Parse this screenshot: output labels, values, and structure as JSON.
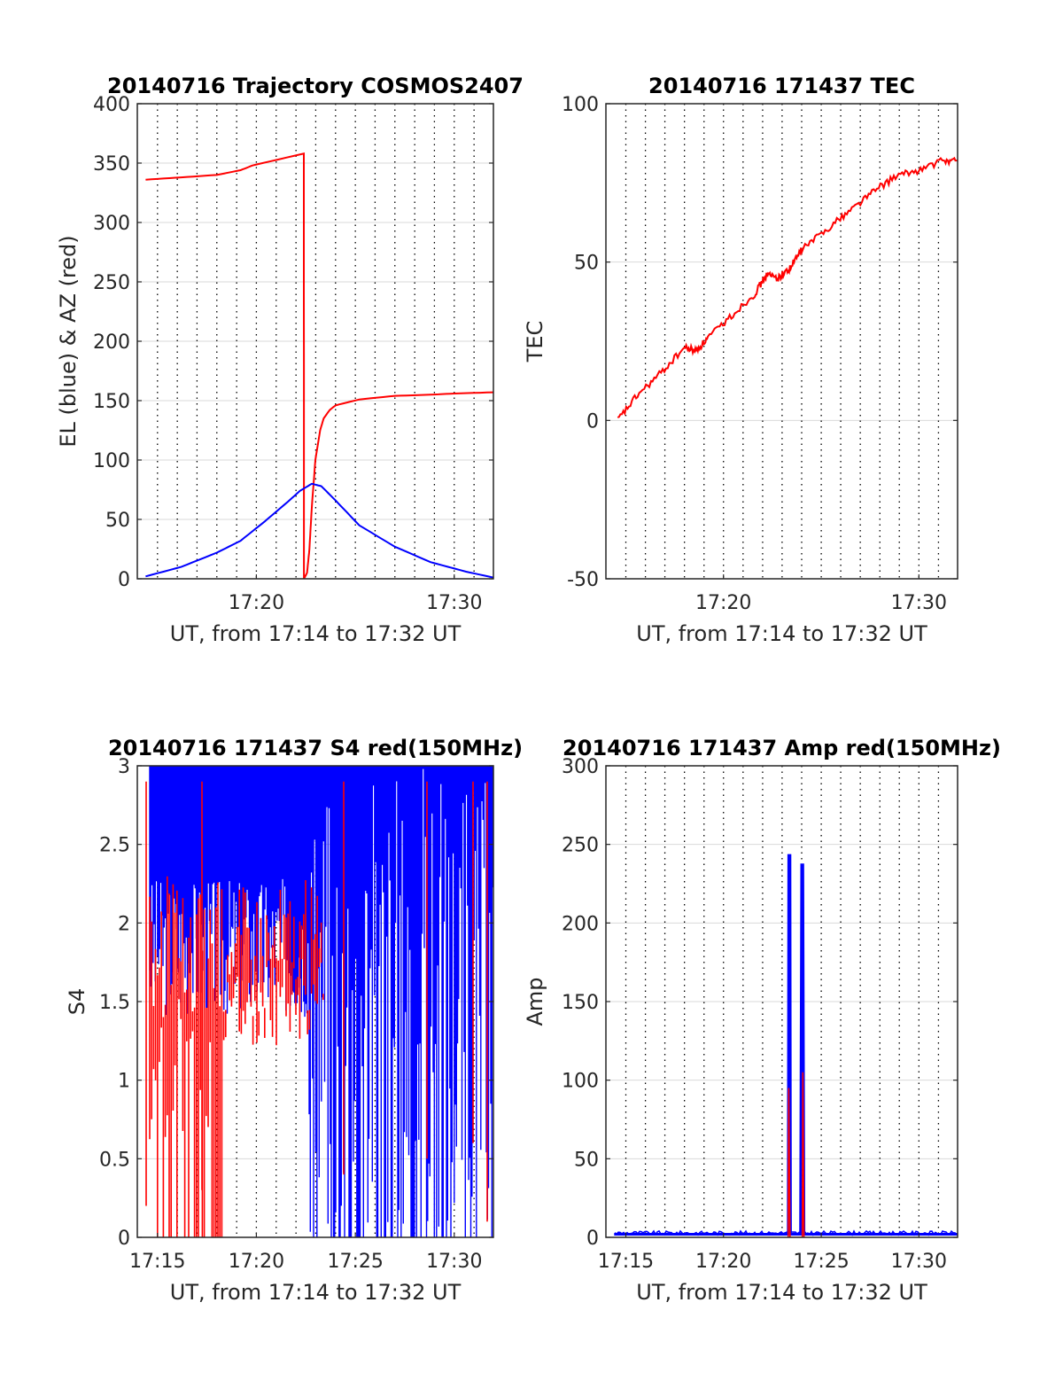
{
  "colors": {
    "red": "#ff0000",
    "blue": "#0000ff",
    "grid": "#d9d9d9",
    "vgrid": "#000000",
    "axis": "#262626"
  },
  "chart_data": [
    {
      "type": "line",
      "title": "20140716 Trajectory COSMOS2407",
      "xlabel": "UT, from 17:14 to 17:32 UT",
      "ylabel": "EL (blue) & AZ (red)",
      "xlim": [
        17.233,
        17.533
      ],
      "ylim": [
        0,
        400
      ],
      "yticks": [
        0,
        50,
        100,
        150,
        200,
        250,
        300,
        350,
        400
      ],
      "yticklabels": [
        "0",
        "50",
        "100",
        "150",
        "200",
        "250",
        "300",
        "350",
        "400"
      ],
      "xticks": [
        17.3333,
        17.5
      ],
      "xticklabels": [
        "17:20",
        "17:30"
      ],
      "grid": true,
      "series": [
        {
          "color": "red",
          "x": [
            17.24,
            17.27,
            17.3,
            17.32,
            17.33,
            17.3733,
            17.3734,
            17.376,
            17.378,
            17.38,
            17.383,
            17.387,
            17.39,
            17.395,
            17.4,
            17.42,
            17.45,
            17.48,
            17.5,
            17.533
          ],
          "values": [
            336,
            338,
            340,
            344,
            348,
            358,
            0,
            5,
            25,
            60,
            100,
            125,
            135,
            142,
            146,
            151,
            154,
            155,
            156,
            157
          ]
        },
        {
          "color": "blue",
          "x": [
            17.24,
            17.27,
            17.3,
            17.32,
            17.34,
            17.36,
            17.37,
            17.38,
            17.388,
            17.4,
            17.42,
            17.45,
            17.48,
            17.51,
            17.533
          ],
          "values": [
            2,
            10,
            22,
            32,
            48,
            65,
            74,
            80,
            78,
            66,
            45,
            27,
            14,
            6,
            1
          ]
        }
      ]
    },
    {
      "type": "line",
      "title": "20140716 171437 TEC",
      "xlabel": "UT, from 17:14 to 17:32 UT",
      "ylabel": "TEC",
      "xlim": [
        17.233,
        17.533
      ],
      "ylim": [
        -50,
        100
      ],
      "yticks": [
        -50,
        0,
        50,
        100
      ],
      "yticklabels": [
        "-50",
        "0",
        "50",
        "100"
      ],
      "xticks": [
        17.3333,
        17.5
      ],
      "xticklabels": [
        "17:20",
        "17:30"
      ],
      "grid": true,
      "series": [
        {
          "color": "red",
          "x": [
            17.243,
            17.26,
            17.28,
            17.3,
            17.31,
            17.32,
            17.34,
            17.36,
            17.37,
            17.38,
            17.39,
            17.4,
            17.42,
            17.44,
            17.46,
            17.48,
            17.5,
            17.52,
            17.533
          ],
          "values": [
            0,
            8,
            15,
            23,
            22,
            26,
            33,
            40,
            46,
            45,
            48,
            54,
            60,
            66,
            72,
            77,
            79,
            82,
            82
          ]
        }
      ]
    },
    {
      "type": "line",
      "title": "20140716 171437 S4 red(150MHz)",
      "xlabel": "UT, from 17:14 to 17:32 UT",
      "ylabel": "S4",
      "xlim": [
        17.233,
        17.533
      ],
      "ylim": [
        0,
        3
      ],
      "yticks": [
        0,
        0.5,
        1,
        1.5,
        2,
        2.5,
        3
      ],
      "yticklabels": [
        "0",
        "0.5",
        "1",
        "1.5",
        "2",
        "2.5",
        "3"
      ],
      "xticks": [
        17.25,
        17.3333,
        17.4167,
        17.5
      ],
      "xticklabels": [
        "17:15",
        "17:20",
        "17:25",
        "17:30"
      ],
      "grid": true,
      "series": [
        {
          "color": "blue",
          "x": [
            17.24,
            17.29,
            17.35,
            17.38,
            17.533
          ],
          "values": [
            2.0,
            2.2,
            1.7,
            1.5,
            3.0
          ]
        },
        {
          "color": "red",
          "x": [
            17.24,
            17.27,
            17.3,
            17.33,
            17.37
          ],
          "values": [
            1.6,
            1.8,
            2.0,
            1.9,
            1.2
          ]
        }
      ]
    },
    {
      "type": "line",
      "title": "20140716 171437 Amp red(150MHz)",
      "xlabel": "UT, from 17:14 to 17:32 UT",
      "ylabel": "Amp",
      "xlim": [
        17.233,
        17.533
      ],
      "ylim": [
        0,
        300
      ],
      "yticks": [
        0,
        50,
        100,
        150,
        200,
        250,
        300
      ],
      "yticklabels": [
        "0",
        "50",
        "100",
        "150",
        "200",
        "250",
        "300"
      ],
      "xticks": [
        17.25,
        17.3333,
        17.4167,
        17.5
      ],
      "xticklabels": [
        "17:15",
        "17:20",
        "17:25",
        "17:30"
      ],
      "grid": true,
      "series": [
        {
          "color": "blue",
          "x": [
            17.24,
            17.3885,
            17.389,
            17.39,
            17.3905,
            17.399,
            17.4,
            17.401,
            17.402,
            17.533
          ],
          "values": [
            2,
            2,
            243,
            243,
            2,
            2,
            237,
            237,
            2,
            2
          ]
        },
        {
          "color": "red",
          "x": [
            17.3885,
            17.389,
            17.39,
            17.4005,
            17.401,
            17.402
          ],
          "values": [
            0,
            95,
            0,
            0,
            105,
            0
          ]
        }
      ]
    }
  ]
}
